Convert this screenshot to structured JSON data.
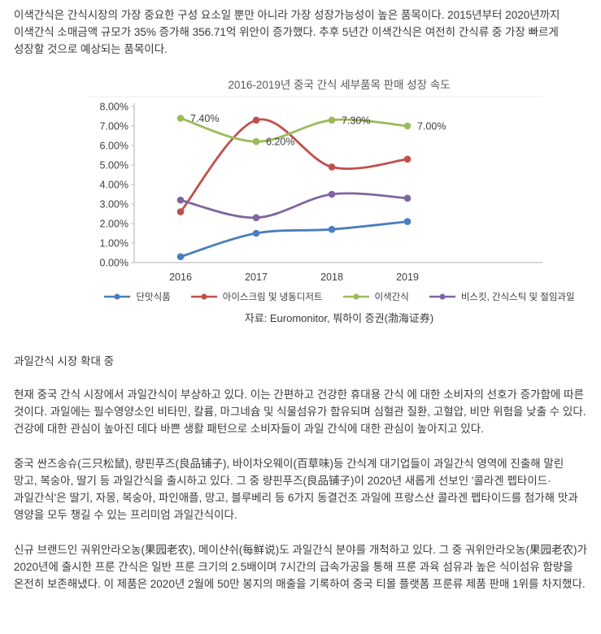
{
  "article": {
    "intro": "이색간식은 간식시장의 가장 중요한 구성 요소일 뿐만 아니라 가장 성장가능성이 높은 품목이다. 2015년부터 2020년까지 이색간식 소매금액 규모가 35% 증가해 356.71억 위안이 증가했다. 추후 5년간 이색간식은 여전히 간식류 중 가장 빠르게 성장할 것으로 예상되는 품목이다.",
    "source_line": "자료: Euromonitor, 붜하이 증권(渤海证券)",
    "section_heading": "과일간식 시장 확대 중",
    "p_fruit_rise": "현재 중국 간식 시장에서 과일간식이 부상하고 있다. 이는 간편하고 건강한 휴대용 간식 에 대한 소비자의 선호가 증가함에 따른 것이다. 과일에는 필수영양소인 비타민, 칼륨, 마그네슘 및 식물섬유가 함유되며 심혈관 질환, 고혈압, 비만 위험을 낮출 수 있다. 건강에 대한 관심이 높아진 데다 바쁜 생활 패턴으로 소비자들이 과일 간식에 대한 관심이 높아지고 있다.",
    "p_companies": "중국 싼즈송슈(三只松鼠), 량핀푸즈(良品铺子), 바이차오웨이(百草味)등 간식계 대기업들이 과일간식 영역에 진출해 말린 망고, 복숭아, 딸기 등 과일간식을 출시하고 있다. 그 중 량핀푸즈(良品铺子)이 2020년 새롭게 선보인 '콜라겐 펩타이드·과일간식'은 딸기, 자몽, 복숭아, 파인애플, 망고, 블루베리 등 6가지 동결건조 과일에 프랑스산 콜라겐 펩타이드를 첨가해 맛과 영양을 모두 챙길 수 있는 프리미엄 과일간식이다.",
    "p_new_brands": "신규 브랜드인 궈위안라오농(果园老农), 메이샨쉬(每鲜说)도 과일간식 분야를 개척하고 있다. 그 중 궈위안라오농(果园老农)가 2020년에 출시한 프룬 간식은 일반 프룬 크기의 2.5배이며 7시간의 급속가공을 통해 프룬 과육 섬유과 높은 식이섬유 함량을 온전히 보존해냈다. 이 제품은 2020년 2월에 50만 봉지의 매출을 기록하여 중국 티몰 플랫폼 프룬류 제품 판매 1위를 차지했다."
  },
  "chart_data": {
    "type": "line",
    "title": "2016-2019년 중국 간식 세부품목 판매 성장 속도",
    "categories": [
      "2016",
      "2017",
      "2018",
      "2019"
    ],
    "series": [
      {
        "key": "sweet-foods",
        "name": "단맛식품",
        "color": "#4A7EBE",
        "values": [
          0.3,
          1.5,
          1.7,
          2.1
        ]
      },
      {
        "key": "ice-cream-frozen-dessert",
        "name": "아이스크림 및 냉동디저트",
        "color": "#C0504D",
        "values": [
          2.6,
          7.3,
          4.9,
          5.3
        ]
      },
      {
        "key": "unique-snacks",
        "name": "이색간식",
        "color": "#9BBB59",
        "values": [
          7.4,
          6.2,
          7.3,
          7.0
        ],
        "point_labels": [
          "7.40%",
          "6.20%",
          "7.30%",
          "7.00%"
        ]
      },
      {
        "key": "biscuits-snack-sticks-pickled-fruit",
        "name": "비스킷, 간식스틱 및 절임과일",
        "color": "#8064A2",
        "values": [
          3.2,
          2.3,
          3.5,
          3.3
        ]
      }
    ],
    "xlabel": "",
    "ylabel": "",
    "ylim": [
      0,
      8
    ],
    "yticks": [
      "0.00%",
      "1.00%",
      "2.00%",
      "3.00%",
      "4.00%",
      "5.00%",
      "6.00%",
      "7.00%",
      "8.00%"
    ],
    "grid": false,
    "legend_position": "bottom",
    "axis_color": "#BFBFBF",
    "label_color": "#404040"
  }
}
